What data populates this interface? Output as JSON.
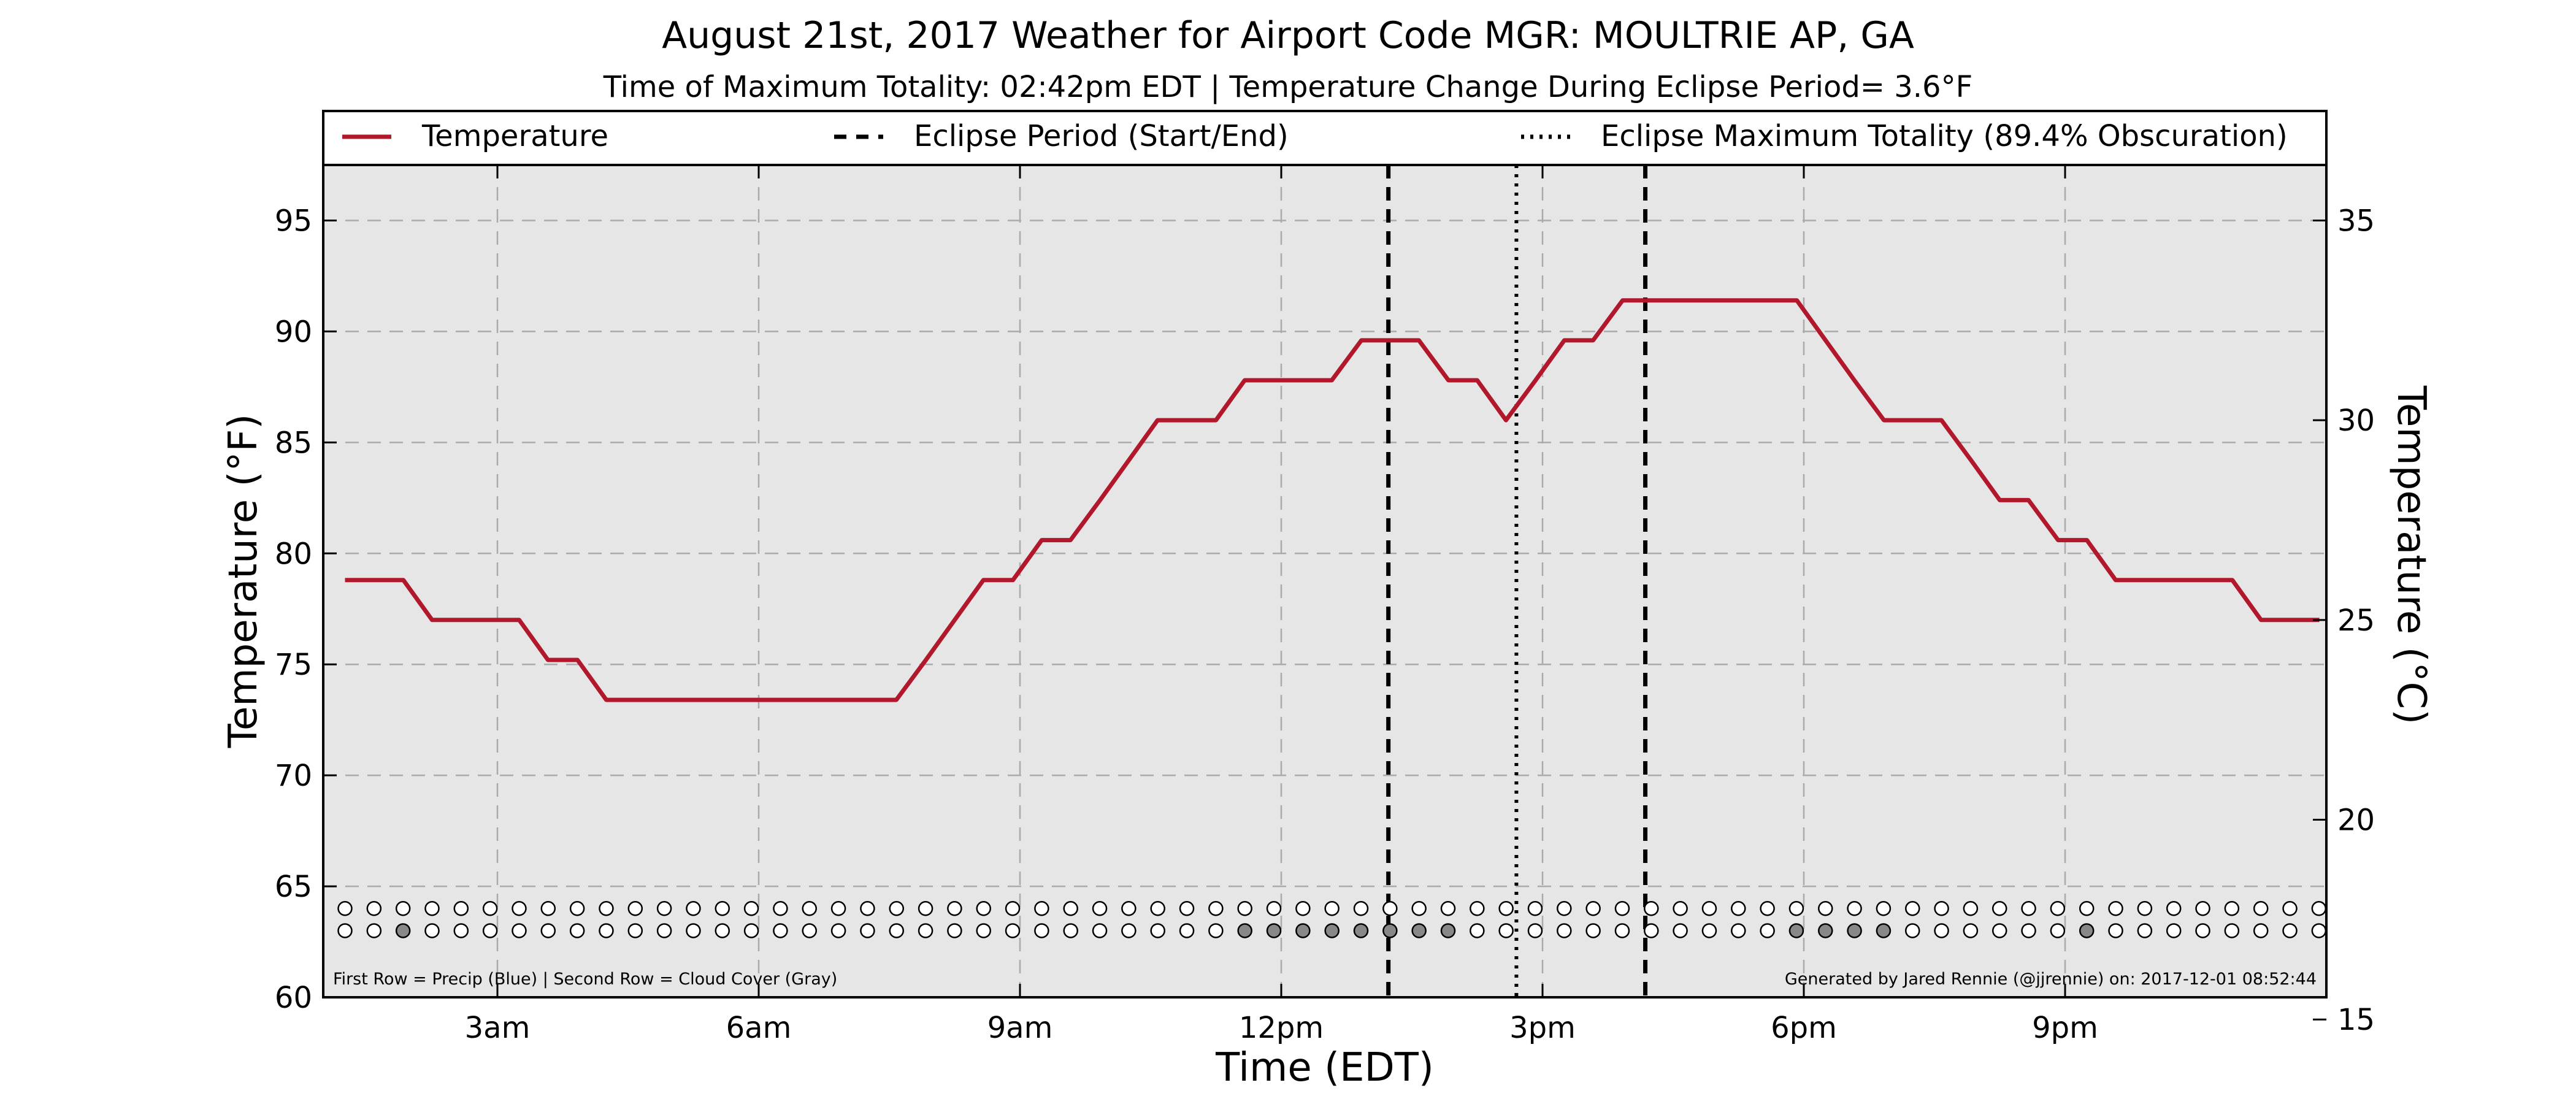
{
  "chart_data": {
    "type": "line",
    "title": "August 21st, 2017 Weather for Airport Code MGR: MOULTRIE AP, GA",
    "subtitle": "Time of Maximum Totality: 02:42pm EDT | Temperature Change During Eclipse Period= 3.6°F",
    "xlabel": "Time (EDT)",
    "ylabel": "Temperature (°F)",
    "ylabel_right": "Temperature (°C)",
    "x_unit": "hours since midnight EDT",
    "xlim": [
      1.0,
      24.0
    ],
    "ylim": [
      60,
      97.5
    ],
    "ylim_right": [
      15.556,
      36.389
    ],
    "x_ticks": [
      {
        "value": 3,
        "label": "3am"
      },
      {
        "value": 6,
        "label": "6am"
      },
      {
        "value": 9,
        "label": "9am"
      },
      {
        "value": 12,
        "label": "12pm"
      },
      {
        "value": 15,
        "label": "3pm"
      },
      {
        "value": 18,
        "label": "6pm"
      },
      {
        "value": 21,
        "label": "9pm"
      }
    ],
    "y_ticks": [
      60,
      65,
      70,
      75,
      80,
      85,
      90,
      95
    ],
    "y_ticks_right": [
      15,
      20,
      25,
      30,
      35
    ],
    "grid": true,
    "legend_position": "top",
    "legend": [
      {
        "label": "Temperature",
        "style": "solid"
      },
      {
        "label": "Eclipse Period (Start/End)",
        "style": "dashed"
      },
      {
        "label": "Eclipse Maximum Totality (89.4% Obscuration)",
        "style": "dotted"
      }
    ],
    "series": [
      {
        "name": "Temperature",
        "color": "#b2182b",
        "x": [
          1.25,
          1.92,
          2.25,
          2.92,
          3.25,
          3.58,
          3.92,
          4.25,
          4.58,
          7.58,
          7.92,
          8.58,
          8.92,
          9.25,
          9.58,
          9.92,
          10.25,
          10.58,
          10.92,
          11.25,
          11.58,
          11.92,
          12.25,
          12.58,
          12.92,
          13.25,
          13.58,
          13.92,
          14.25,
          14.58,
          14.92,
          15.25,
          15.58,
          15.92,
          16.25,
          16.58,
          16.92,
          17.25,
          17.58,
          17.92,
          18.25,
          18.58,
          18.92,
          19.25,
          19.58,
          19.92,
          20.25,
          20.58,
          20.92,
          21.25,
          21.58,
          21.92,
          22.25,
          22.58,
          22.92,
          23.25,
          23.58,
          23.92
        ],
        "values": [
          78.8,
          78.8,
          77.0,
          77.0,
          77.0,
          75.2,
          75.2,
          73.4,
          73.4,
          73.4,
          75.2,
          78.8,
          78.8,
          80.6,
          80.6,
          82.4,
          84.2,
          86.0,
          86.0,
          86.0,
          87.8,
          87.8,
          87.8,
          87.8,
          89.6,
          89.6,
          89.6,
          87.8,
          87.8,
          86.0,
          87.8,
          89.6,
          89.6,
          91.4,
          91.4,
          91.4,
          91.4,
          91.4,
          91.4,
          91.4,
          89.6,
          87.8,
          86.0,
          86.0,
          86.0,
          84.2,
          82.4,
          82.4,
          80.6,
          80.6,
          78.8,
          78.8,
          78.8,
          78.8,
          78.8,
          77.0,
          77.0,
          77.0
        ]
      }
    ],
    "eclipse": {
      "start": 13.23,
      "end": 16.18,
      "max_totality": 14.7
    },
    "markers": {
      "start": 1.25,
      "step": 0.3333,
      "count": 69,
      "precip_row_value": 64.0,
      "cloud_row_value": 63.0,
      "precip_filled": [],
      "cloud_filled": [
        2,
        31,
        32,
        33,
        34,
        35,
        36,
        37,
        38,
        50,
        51,
        52,
        53,
        60
      ],
      "filled_color": "#888888"
    },
    "footnote_left": "First Row = Precip (Blue) | Second Row = Cloud Cover (Gray)",
    "footnote_right": "Generated by Jared Rennie (@jjrennie) on: 2017-12-01 08:52:44",
    "colors": {
      "plot_background": "#e6e6e6",
      "temperature": "#b2182b",
      "grid": "#aaaaaa"
    }
  }
}
